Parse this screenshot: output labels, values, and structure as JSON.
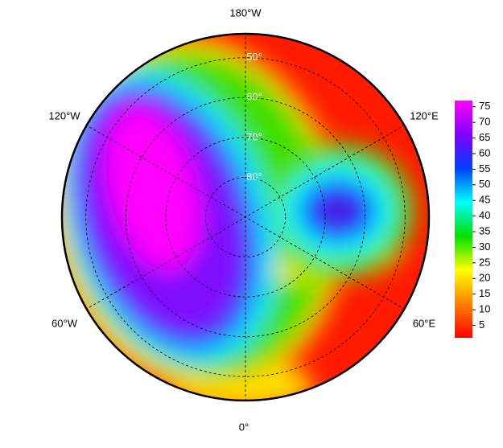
{
  "map": {
    "longitude_labels": [
      "180°W",
      "120°E",
      "60°E",
      "0°",
      "60°W",
      "120°W"
    ],
    "latitude_circles": [
      {
        "value": 50,
        "label": "50°"
      },
      {
        "value": 60,
        "label": "60°"
      },
      {
        "value": 70,
        "label": "70°"
      },
      {
        "value": 80,
        "label": "80°"
      }
    ],
    "lat_lim": [
      44,
      90
    ],
    "colorbar": {
      "lim": [
        1,
        77
      ],
      "ticks": [
        5,
        10,
        15,
        20,
        25,
        30,
        35,
        40,
        45,
        50,
        55,
        60,
        65,
        70,
        75
      ],
      "colors": [
        "#ff0000",
        "#ff8000",
        "#ffff00",
        "#00e000",
        "#00ffff",
        "#0040ff",
        "#8000ff",
        "#ff00ff"
      ]
    }
  }
}
